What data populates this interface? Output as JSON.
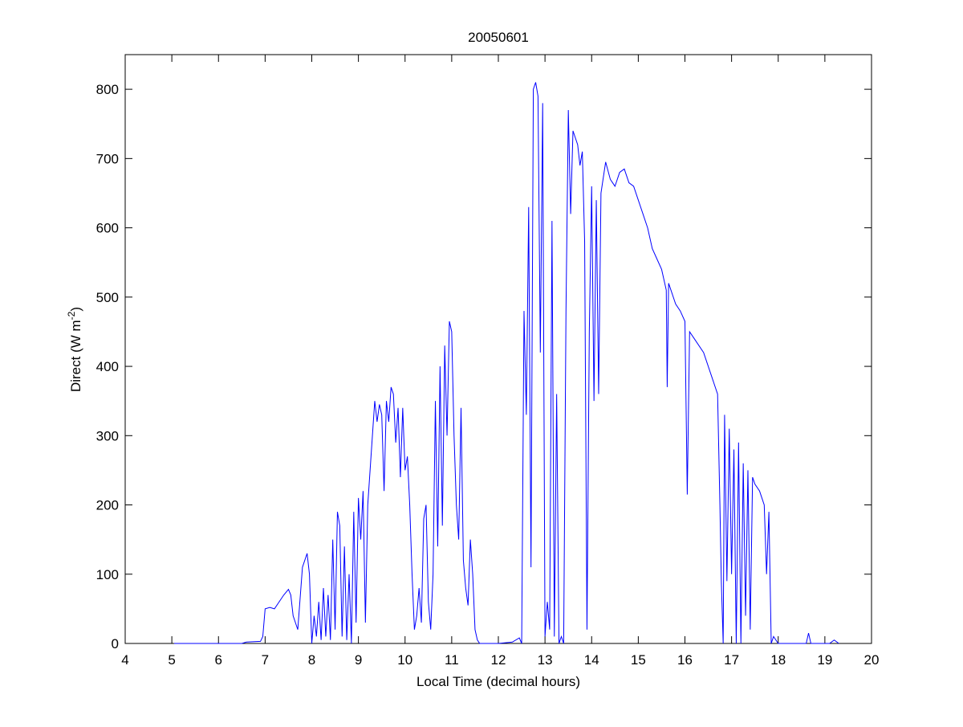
{
  "chart_data": {
    "type": "line",
    "title": "20050601",
    "xlabel": "Local Time (decimal hours)",
    "ylabel": {
      "text": "Direct (W m",
      "superscript": "-2",
      "suffix": ")"
    },
    "xlim": [
      4,
      20
    ],
    "xticks": [
      4,
      5,
      6,
      7,
      8,
      9,
      10,
      11,
      12,
      13,
      14,
      15,
      16,
      17,
      18,
      19,
      20
    ],
    "ylim": [
      0,
      850
    ],
    "yticks": [
      0,
      100,
      200,
      300,
      400,
      500,
      600,
      700,
      800
    ],
    "grid": false,
    "series": [
      {
        "color": "#0000ff",
        "x": [
          5.05,
          6.5,
          6.6,
          6.9,
          6.95,
          7.0,
          7.1,
          7.2,
          7.3,
          7.4,
          7.5,
          7.55,
          7.6,
          7.7,
          7.8,
          7.9,
          7.95,
          8.0,
          8.05,
          8.1,
          8.15,
          8.2,
          8.25,
          8.3,
          8.35,
          8.4,
          8.45,
          8.5,
          8.55,
          8.6,
          8.65,
          8.7,
          8.75,
          8.8,
          8.85,
          8.9,
          8.95,
          9.0,
          9.05,
          9.1,
          9.15,
          9.2,
          9.3,
          9.35,
          9.4,
          9.45,
          9.5,
          9.55,
          9.6,
          9.65,
          9.7,
          9.75,
          9.8,
          9.85,
          9.9,
          9.95,
          10.0,
          10.05,
          10.1,
          10.15,
          10.2,
          10.25,
          10.3,
          10.35,
          10.4,
          10.45,
          10.5,
          10.55,
          10.6,
          10.65,
          10.7,
          10.75,
          10.8,
          10.85,
          10.9,
          10.95,
          11.0,
          11.05,
          11.1,
          11.15,
          11.2,
          11.25,
          11.3,
          11.35,
          11.4,
          11.45,
          11.5,
          11.55,
          11.6,
          12.0,
          12.3,
          12.45,
          12.5,
          12.55,
          12.6,
          12.65,
          12.7,
          12.75,
          12.8,
          12.85,
          12.9,
          12.95,
          13.0,
          13.05,
          13.1,
          13.15,
          13.2,
          13.25,
          13.3,
          13.35,
          13.4,
          13.45,
          13.5,
          13.55,
          13.6,
          13.7,
          13.75,
          13.8,
          13.85,
          13.9,
          13.95,
          14.0,
          14.05,
          14.1,
          14.15,
          14.2,
          14.3,
          14.4,
          14.5,
          14.6,
          14.7,
          14.8,
          14.9,
          15.0,
          15.1,
          15.2,
          15.3,
          15.4,
          15.5,
          15.6,
          15.62,
          15.65,
          15.8,
          15.9,
          16.0,
          16.05,
          16.1,
          16.2,
          16.4,
          16.6,
          16.7,
          16.75,
          16.78,
          16.82,
          16.85,
          16.9,
          16.95,
          17.0,
          17.05,
          17.1,
          17.15,
          17.2,
          17.25,
          17.3,
          17.35,
          17.4,
          17.45,
          17.5,
          17.6,
          17.7,
          17.75,
          17.8,
          17.85,
          17.9,
          18.0,
          18.6,
          18.65,
          18.7,
          19.1,
          19.2,
          19.3
        ],
        "values": [
          0,
          0,
          2,
          3,
          10,
          50,
          52,
          50,
          60,
          70,
          78,
          70,
          40,
          20,
          110,
          130,
          100,
          0,
          40,
          10,
          60,
          5,
          80,
          10,
          70,
          5,
          150,
          20,
          190,
          170,
          10,
          140,
          5,
          100,
          0,
          190,
          30,
          210,
          150,
          220,
          30,
          200,
          300,
          350,
          320,
          345,
          330,
          220,
          350,
          320,
          370,
          360,
          290,
          340,
          240,
          340,
          250,
          270,
          200,
          100,
          20,
          40,
          80,
          30,
          180,
          200,
          60,
          20,
          100,
          350,
          140,
          400,
          170,
          430,
          300,
          465,
          450,
          300,
          200,
          150,
          340,
          120,
          80,
          55,
          150,
          100,
          20,
          5,
          0,
          0,
          2,
          8,
          0,
          480,
          330,
          630,
          110,
          800,
          810,
          790,
          420,
          780,
          10,
          60,
          20,
          610,
          10,
          360,
          0,
          10,
          0,
          480,
          770,
          620,
          740,
          720,
          690,
          710,
          580,
          20,
          450,
          660,
          350,
          640,
          360,
          650,
          695,
          670,
          660,
          680,
          685,
          665,
          660,
          640,
          620,
          600,
          570,
          555,
          540,
          510,
          370,
          520,
          490,
          480,
          465,
          215,
          450,
          440,
          420,
          380,
          360,
          200,
          90,
          0,
          330,
          90,
          310,
          100,
          280,
          0,
          290,
          0,
          260,
          40,
          250,
          20,
          240,
          230,
          220,
          200,
          100,
          190,
          0,
          10,
          0,
          0,
          15,
          0,
          0,
          5,
          0
        ]
      }
    ]
  }
}
